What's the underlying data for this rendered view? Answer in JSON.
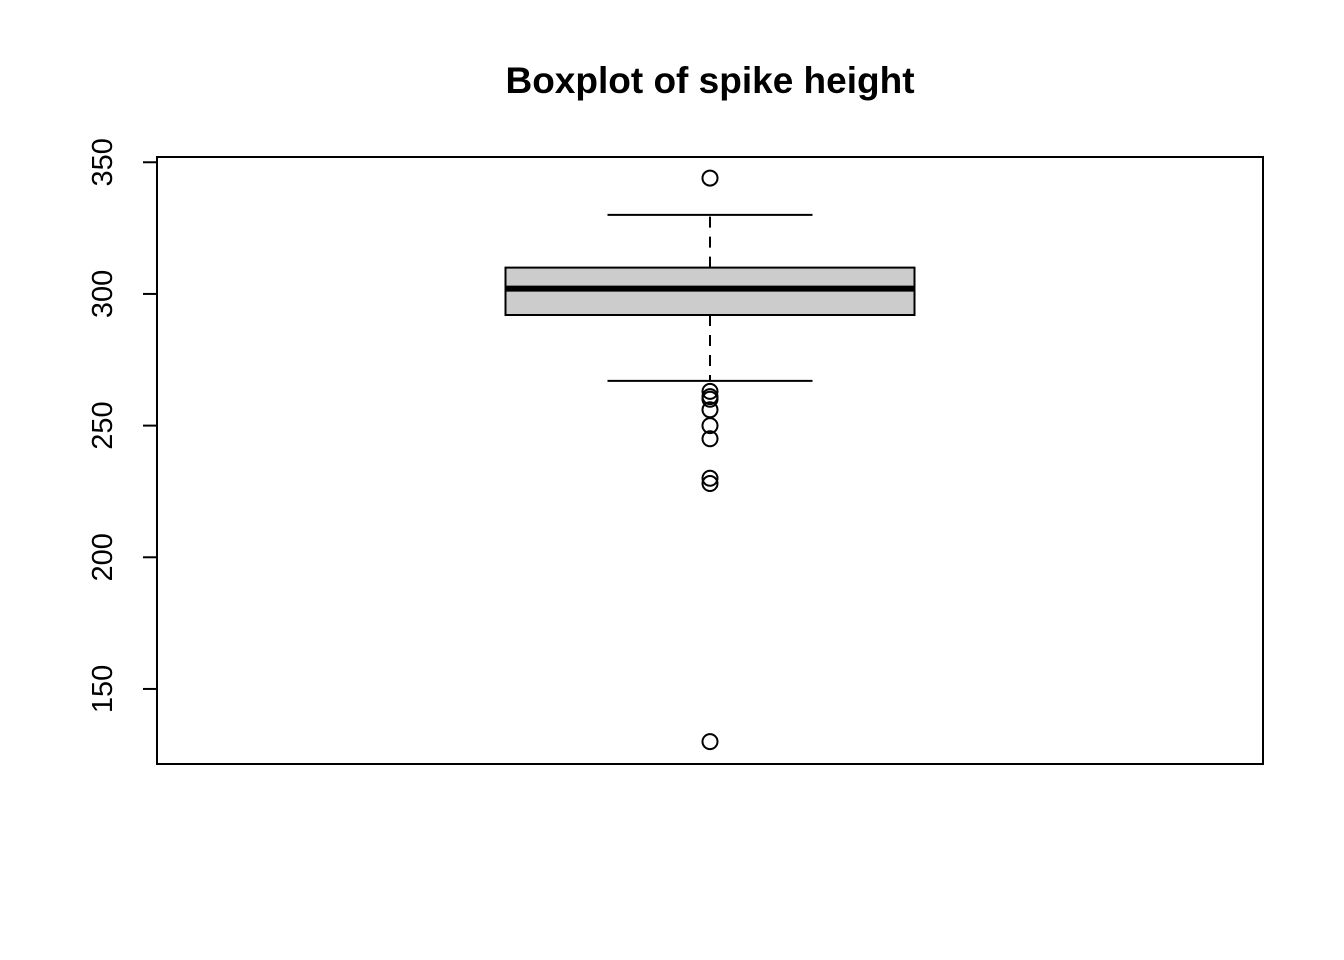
{
  "chart_data": {
    "type": "boxplot",
    "title": "Boxplot of spike height",
    "xlabel": "",
    "ylabel": "",
    "ylim": [
      121.5,
      352
    ],
    "yticks": [
      150,
      200,
      250,
      300,
      350
    ],
    "grid": false,
    "box": {
      "lower_whisker": 267,
      "q1": 292,
      "median": 302,
      "q3": 310,
      "upper_whisker": 330
    },
    "outliers": [
      344,
      263,
      261,
      260,
      256,
      250,
      245,
      230,
      228,
      130
    ],
    "colors": {
      "box_fill": "#cccccc",
      "stroke": "#000000",
      "background": "#ffffff"
    }
  }
}
